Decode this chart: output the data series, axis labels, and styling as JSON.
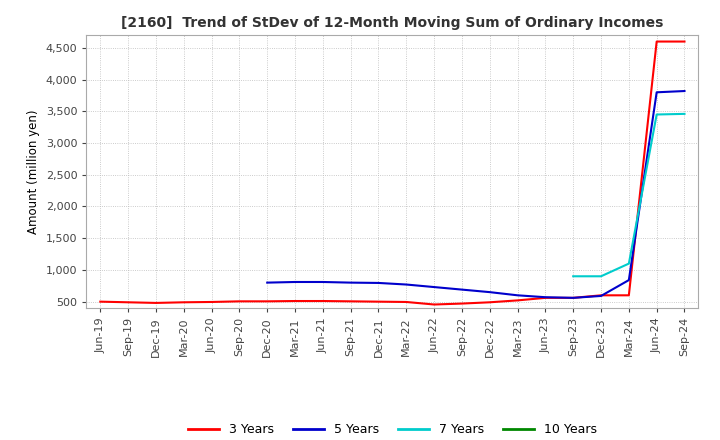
{
  "title": "[2160]  Trend of StDev of 12-Month Moving Sum of Ordinary Incomes",
  "ylabel": "Amount (million yen)",
  "background_color": "#ffffff",
  "grid_color": "#bbbbbb",
  "ylim": [
    400,
    4700
  ],
  "yticks": [
    500,
    1000,
    1500,
    2000,
    2500,
    3000,
    3500,
    4000,
    4500
  ],
  "legend": [
    "3 Years",
    "5 Years",
    "7 Years",
    "10 Years"
  ],
  "line_colors": [
    "#ff0000",
    "#0000cc",
    "#00cccc",
    "#008800"
  ],
  "x_labels": [
    "Jun-19",
    "Sep-19",
    "Dec-19",
    "Mar-20",
    "Jun-20",
    "Sep-20",
    "Dec-20",
    "Mar-21",
    "Jun-21",
    "Sep-21",
    "Dec-21",
    "Mar-22",
    "Jun-22",
    "Sep-22",
    "Dec-22",
    "Mar-23",
    "Jun-23",
    "Sep-23",
    "Dec-23",
    "Mar-24",
    "Jun-24",
    "Sep-24"
  ],
  "series_3y": [
    500,
    490,
    480,
    490,
    495,
    505,
    505,
    510,
    510,
    505,
    500,
    495,
    455,
    470,
    490,
    520,
    560,
    560,
    600,
    600,
    4600,
    4600
  ],
  "series_5y": [
    null,
    null,
    null,
    null,
    null,
    null,
    800,
    810,
    810,
    800,
    795,
    770,
    730,
    690,
    650,
    600,
    570,
    560,
    590,
    840,
    3800,
    3820
  ],
  "series_7y": [
    null,
    null,
    null,
    null,
    null,
    null,
    null,
    null,
    null,
    null,
    null,
    null,
    null,
    null,
    null,
    null,
    null,
    900,
    900,
    1100,
    3450,
    3460
  ],
  "series_10y": [
    null,
    null,
    null,
    null,
    null,
    null,
    null,
    null,
    null,
    null,
    null,
    null,
    null,
    null,
    null,
    null,
    null,
    null,
    null,
    null,
    null,
    null
  ]
}
